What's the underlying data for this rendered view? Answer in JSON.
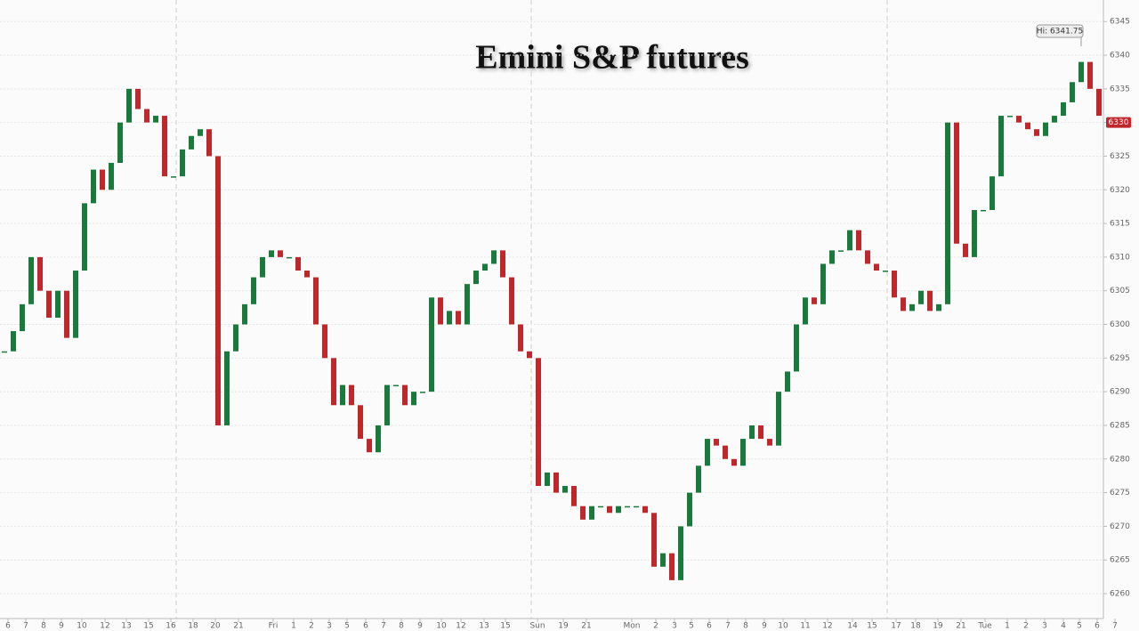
{
  "chart_data": {
    "type": "candlestick",
    "title": "Emini S&P futures",
    "values": [
      6296,
      6299,
      6303,
      6310,
      6305,
      6301,
      6305,
      6298,
      6308,
      6318,
      6323,
      6320,
      6324,
      6330,
      6335,
      6332,
      6330,
      6331,
      6322,
      6322,
      6326,
      6328,
      6329,
      6325,
      6285,
      6296,
      6300,
      6303,
      6307,
      6310,
      6311,
      6310,
      6310,
      6308,
      6307,
      6300,
      6295,
      6288,
      6291,
      6288,
      6283,
      6281,
      6285,
      6291,
      6291,
      6288,
      6290,
      6290,
      6304,
      6300,
      6302,
      6300,
      6306,
      6308,
      6309,
      6311,
      6307,
      6300,
      6296,
      6295,
      6276,
      6278,
      6275,
      6276,
      6273,
      6271,
      6273,
      6273,
      6272,
      6273,
      6273,
      6273,
      6272,
      6264,
      6266,
      6262,
      6270,
      6275,
      6279,
      6283,
      6282,
      6280,
      6279,
      6283,
      6285,
      6283,
      6282,
      6290,
      6293,
      6300,
      6304,
      6303,
      6309,
      6311,
      6311,
      6314,
      6311,
      6309,
      6308,
      6308,
      6304,
      6302,
      6303,
      6305,
      6302,
      6303,
      6330,
      6312,
      6310,
      6317,
      6317,
      6322,
      6331,
      6331,
      6330,
      6329,
      6328,
      6330,
      6331,
      6333,
      6336,
      6339,
      6335,
      6331
    ],
    "up_color": "#1a7a3c",
    "down_color": "#c0272d",
    "ylim": [
      6256.3,
      6348.2
    ],
    "yticks": [
      6260,
      6265,
      6270,
      6275,
      6280,
      6285,
      6290,
      6295,
      6300,
      6305,
      6310,
      6315,
      6320,
      6325,
      6330,
      6335,
      6340,
      6345
    ],
    "xticks": [
      {
        "value": 0.4,
        "label": "6"
      },
      {
        "value": 2.4,
        "label": "7"
      },
      {
        "value": 4.4,
        "label": "8"
      },
      {
        "value": 6.4,
        "label": "9"
      },
      {
        "value": 8.7,
        "label": "10"
      },
      {
        "value": 11.3,
        "label": "12"
      },
      {
        "value": 13.7,
        "label": "13"
      },
      {
        "value": 16.2,
        "label": "15"
      },
      {
        "value": 18.7,
        "label": "16"
      },
      {
        "value": 21.2,
        "label": "18"
      },
      {
        "value": 23.7,
        "label": "20"
      },
      {
        "value": 26.3,
        "label": "21"
      },
      {
        "value": 30.2,
        "label": "Fri"
      },
      {
        "value": 32.5,
        "label": "1"
      },
      {
        "value": 34.5,
        "label": "2"
      },
      {
        "value": 36.5,
        "label": "3"
      },
      {
        "value": 38.5,
        "label": "5"
      },
      {
        "value": 40.6,
        "label": "6"
      },
      {
        "value": 42.6,
        "label": "7"
      },
      {
        "value": 44.6,
        "label": "8"
      },
      {
        "value": 46.7,
        "label": "9"
      },
      {
        "value": 49.1,
        "label": "10"
      },
      {
        "value": 51.3,
        "label": "12"
      },
      {
        "value": 53.9,
        "label": "13"
      },
      {
        "value": 56.3,
        "label": "15"
      },
      {
        "value": 59.9,
        "label": "Sun"
      },
      {
        "value": 62.8,
        "label": "19"
      },
      {
        "value": 65.4,
        "label": "21"
      },
      {
        "value": 70.5,
        "label": "Mon"
      },
      {
        "value": 73.2,
        "label": "2"
      },
      {
        "value": 75.3,
        "label": "3"
      },
      {
        "value": 77.2,
        "label": "5"
      },
      {
        "value": 79.2,
        "label": "6"
      },
      {
        "value": 81.3,
        "label": "7"
      },
      {
        "value": 83.3,
        "label": "8"
      },
      {
        "value": 85.4,
        "label": "9"
      },
      {
        "value": 87.5,
        "label": "10"
      },
      {
        "value": 90,
        "label": "11"
      },
      {
        "value": 92.5,
        "label": "12"
      },
      {
        "value": 95.3,
        "label": "14"
      },
      {
        "value": 97.5,
        "label": "15"
      },
      {
        "value": 100.2,
        "label": "17"
      },
      {
        "value": 102.4,
        "label": "18"
      },
      {
        "value": 104.9,
        "label": "19"
      },
      {
        "value": 107.5,
        "label": "21"
      },
      {
        "value": 110.2,
        "label": "Tue"
      },
      {
        "value": 112.7,
        "label": "1"
      },
      {
        "value": 114.8,
        "label": "2"
      },
      {
        "value": 116.9,
        "label": "3"
      },
      {
        "value": 119,
        "label": "4"
      },
      {
        "value": 120.8,
        "label": "5"
      },
      {
        "value": 122.8,
        "label": "6"
      },
      {
        "value": 124.8,
        "label": "7"
      }
    ],
    "grid": true,
    "high_label": "Hi: 6341.75",
    "last_price": 6330,
    "last_price_color": "#c0272d"
  }
}
